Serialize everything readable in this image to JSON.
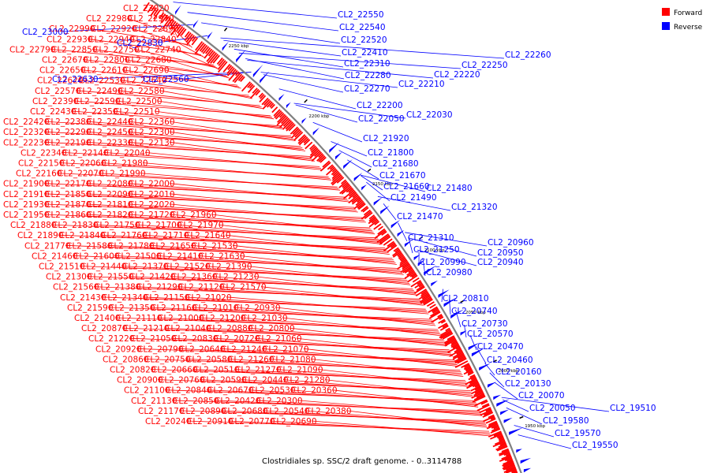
{
  "caption": "Clostridiales sp. SSC/2 draft genome. - 0..3114788",
  "legend": [
    {
      "label": "Forward",
      "color": "#ff0000"
    },
    {
      "label": "Reverse",
      "color": "#0000ff"
    }
  ],
  "colors": {
    "forward": "#ff0000",
    "reverse": "#0000ff",
    "backbone": "#808080"
  },
  "ticks": [
    "2250 kbp",
    "2200 kbp",
    "2150 kbp",
    "2100 kbp",
    "2050 kbp",
    "2000 kbp",
    "1950 kbp"
  ],
  "forward_labels": [
    "CL2_23020",
    "CL2_22980",
    "CL2_22970",
    "CL2_22990",
    "CL2_22920",
    "CL2_22890",
    "CL2_22930",
    "CL2_22940",
    "CL2_22840",
    "CL2_22790",
    "CL2_22850",
    "CL2_22750",
    "CL2_22740",
    "CL2_22670",
    "CL2_22800",
    "CL2_22680",
    "CL2_22650",
    "CL2_22610",
    "CL2_22690",
    "CL2_22620",
    "CL2_22530",
    "CL2_22640",
    "CL2_22570",
    "CL2_22490",
    "CL2_22580",
    "CL2_22390",
    "CL2_22590",
    "CL2_22500",
    "CL2_22430",
    "CL2_22350",
    "CL2_22510",
    "CL2_22420",
    "CL2_22380",
    "CL2_22440",
    "CL2_22360",
    "CL2_22320",
    "CL2_22290",
    "CL2_22450",
    "CL2_22300",
    "CL2_22230",
    "CL2_22190",
    "CL2_22330",
    "CL2_22130",
    "CL2_22340",
    "CL2_22140",
    "CL2_22040",
    "CL2_22150",
    "CL2_22060",
    "CL2_21980",
    "CL2_22160",
    "CL2_22070",
    "CL2_21990",
    "CL2_21900",
    "CL2_22170",
    "CL2_22080",
    "CL2_22000",
    "CL2_21910",
    "CL2_21850",
    "CL2_22090",
    "CL2_22010",
    "CL2_21930",
    "CL2_21870",
    "CL2_21810",
    "CL2_22020",
    "CL2_21950",
    "CL2_21860",
    "CL2_21820",
    "CL2_21720",
    "CL2_21960",
    "CL2_21880",
    "CL2_21830",
    "CL2_21750",
    "CL2_21700",
    "CL2_21970",
    "CL2_21890",
    "CL2_21840",
    "CL2_21760",
    "CL2_21710",
    "CL2_21640",
    "CL2_21770",
    "CL2_21580",
    "CL2_21780",
    "CL2_21650",
    "CL2_21530",
    "CL2_21460",
    "CL2_21600",
    "CL2_21500",
    "CL2_21410",
    "CL2_21630",
    "CL2_21510",
    "CL2_21440",
    "CL2_21370",
    "CL2_21520",
    "CL2_21390",
    "CL2_21300",
    "CL2_21550",
    "CL2_21420",
    "CL2_21360",
    "CL2_21230",
    "CL2_21560",
    "CL2_21380",
    "CL2_21290",
    "CL2_21120",
    "CL2_21570",
    "CL2_21430",
    "CL2_21340",
    "CL2_21150",
    "CL2_21020",
    "CL2_21590",
    "CL2_21350",
    "CL2_21160",
    "CL2_21010",
    "CL2_20930",
    "CL2_21400",
    "CL2_21110",
    "CL2_21000",
    "CL2_21200",
    "CL2_21030",
    "CL2_20870",
    "CL2_21210",
    "CL2_21040",
    "CL2_20880",
    "CL2_20800",
    "CL2_21220",
    "CL2_21050",
    "CL2_20830",
    "CL2_20720",
    "CL2_21060",
    "CL2_20920",
    "CL2_20790",
    "CL2_20640",
    "CL2_21240",
    "CL2_21070",
    "CL2_20860",
    "CL2_20750",
    "CL2_20580",
    "CL2_21260",
    "CL2_21080",
    "CL2_20820",
    "CL2_20660",
    "CL2_20510",
    "CL2_21270",
    "CL2_21090",
    "CL2_20900",
    "CL2_20760",
    "CL2_20590",
    "CL2_20440",
    "CL2_21280",
    "CL2_21100",
    "CL2_20840",
    "CL2_20670",
    "CL2_20530",
    "CL2_20360",
    "CL2_21130",
    "CL2_20850",
    "CL2_20420",
    "CL2_20300",
    "CL2_21170",
    "CL2_20890",
    "CL2_20680",
    "CL2_20540",
    "CL2_20380",
    "CL2_20240",
    "CL2_20910",
    "CL2_20770",
    "CL2_20690"
  ],
  "reverse_left_labels": [
    "CL2_23000",
    "CL2_22830",
    "CL2_22630",
    "CL2_22560"
  ],
  "reverse_labels": [
    "CL2_22550",
    "CL2_22540",
    "CL2_22520",
    "CL2_22410",
    "CL2_22310",
    "CL2_22260",
    "CL2_22250",
    "CL2_22220",
    "CL2_22280",
    "CL2_22210",
    "CL2_22270",
    "CL2_22200",
    "CL2_22030",
    "CL2_22050",
    "CL2_21920",
    "CL2_21800",
    "CL2_21680",
    "CL2_21670",
    "CL2_21660",
    "CL2_21480",
    "CL2_21490",
    "CL2_21320",
    "CL2_21470",
    "CL2_21310",
    "CL2_20960",
    "CL2_21250",
    "CL2_20950",
    "CL2_20990",
    "CL2_20940",
    "CL2_20980",
    "CL2_20810",
    "CL2_20740",
    "CL2_20730",
    "CL2_20570",
    "CL2_20470",
    "CL2_20460",
    "CL2_20160",
    "CL2_20130",
    "CL2_20070",
    "CL2_20050",
    "CL2_19510",
    "CL2_19580",
    "CL2_19570",
    "CL2_19550"
  ]
}
